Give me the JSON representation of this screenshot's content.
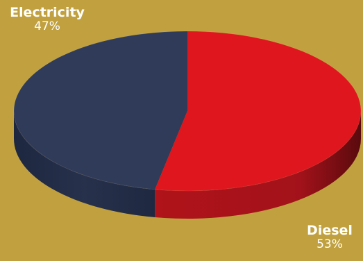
{
  "colors": {
    "background": "#c1a13f",
    "electricity": "#2f3b58",
    "diesel": "#df161d"
  },
  "chart_data": {
    "type": "pie",
    "title": "",
    "style": "3d",
    "slices": [
      {
        "label": "Electricity",
        "value": 47,
        "value_label": "47%",
        "color": "#2f3b58"
      },
      {
        "label": "Diesel",
        "value": 53,
        "value_label": "53%",
        "color": "#df161d"
      }
    ]
  }
}
